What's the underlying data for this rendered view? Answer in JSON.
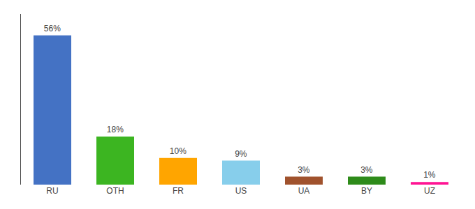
{
  "chart_data": {
    "type": "bar",
    "categories": [
      "RU",
      "OTH",
      "FR",
      "US",
      "UA",
      "BY",
      "UZ"
    ],
    "values": [
      56,
      18,
      10,
      9,
      3,
      3,
      1
    ],
    "value_labels": [
      "56%",
      "18%",
      "10%",
      "9%",
      "3%",
      "3%",
      "1%"
    ],
    "colors": [
      "#4472C4",
      "#3CB521",
      "#FFA500",
      "#87CEEB",
      "#A0522D",
      "#2E8B1A",
      "#FF1493"
    ],
    "ylim": [
      0,
      64
    ],
    "data_labels": true,
    "tick_labels": "x",
    "grid": false
  }
}
